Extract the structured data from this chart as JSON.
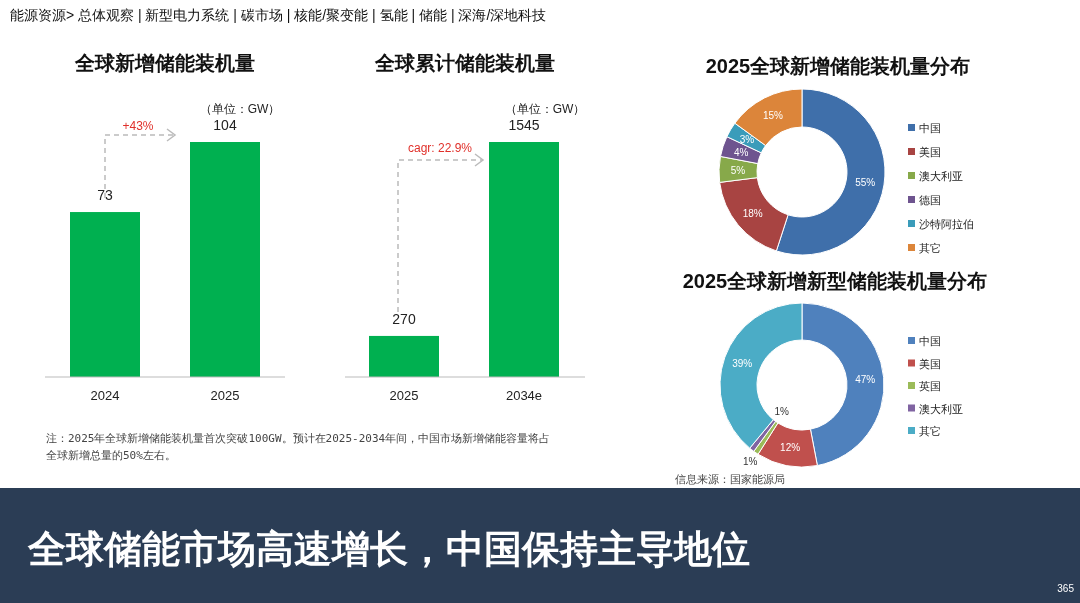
{
  "chart_data": [
    {
      "type": "other",
      "annotations": [
        "能源资源> 总体观察 | 新型电力系统 | 碳市场 | 核能/聚变能 | 氢能 | 储能 | 深海/深地科技",
        "全球储能市场高速增长，中国保持主导地位",
        "365"
      ]
    },
    {
      "type": "bar",
      "title": "全球新增储能装机量",
      "categories": [
        "2024",
        "2025"
      ],
      "values": [
        73,
        104
      ],
      "color": "#00b050",
      "data_labels": true,
      "annotations": [
        "（单位：GW）",
        "+43%",
        "注：2025年全球新增储能装机量首次突破100GW。预计在2025-2034年间，中国市场新增储能容量将占全球新增总量的50%左右。"
      ]
    },
    {
      "type": "bar",
      "title": "全球累计储能装机量",
      "categories": [
        "2025",
        "2034e"
      ],
      "values": [
        270,
        1545
      ],
      "color": "#00b050",
      "data_labels": true,
      "annotations": [
        "（单位：GW）",
        "cagr: 22.9%"
      ]
    },
    {
      "type": "donut",
      "title": "2025全球新增储能装机量分布",
      "categories": [
        "中国",
        "美国",
        "澳大利亚",
        "德国",
        "沙特阿拉伯",
        "其它"
      ],
      "values": [
        55,
        18,
        5,
        4,
        3,
        15
      ],
      "colors": [
        "#3f6faa",
        "#a84442",
        "#87a94a",
        "#6e548f",
        "#3a9cba",
        "#dc853a"
      ],
      "value_labels": [
        "55%",
        "18%",
        "5%",
        "4%",
        "3%",
        "15%"
      ],
      "legend": "right"
    },
    {
      "type": "donut",
      "title": "2025全球新增新型储能装机量分布",
      "categories": [
        "中国",
        "美国",
        "英国",
        "澳大利亚",
        "其它"
      ],
      "values": [
        47,
        12,
        1,
        1,
        39
      ],
      "colors": [
        "#4f81bd",
        "#c0504d",
        "#9bbb59",
        "#8064a2",
        "#4bacc6"
      ],
      "value_labels": [
        "47%",
        "12%",
        "1%",
        "1%",
        "39%"
      ],
      "legend": "right",
      "annotations": [
        "信息来源：国家能源局"
      ]
    }
  ]
}
